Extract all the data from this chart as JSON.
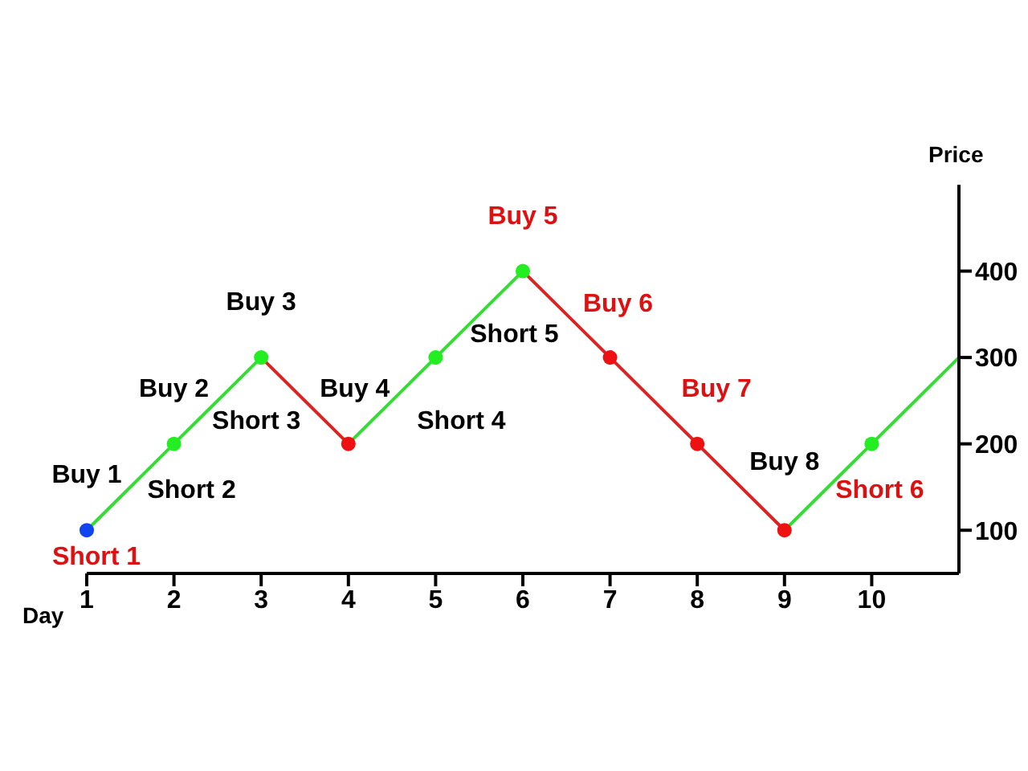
{
  "chart_data": {
    "type": "line",
    "xlabel": "Day",
    "ylabel": "Price",
    "xlim": [
      1,
      11
    ],
    "xticks": [
      1,
      2,
      3,
      4,
      5,
      6,
      7,
      8,
      9,
      10
    ],
    "ylim": [
      50,
      500
    ],
    "yticks": [
      100,
      200,
      300,
      400
    ],
    "grid": false,
    "legend": false,
    "marker": "none",
    "line_style": "solid",
    "series": [
      {
        "color": "#33dd33",
        "x": [
          1,
          2,
          3
        ],
        "values": [
          100,
          200,
          300
        ]
      },
      {
        "color": "#dd2222",
        "x": [
          3,
          4
        ],
        "values": [
          300,
          200
        ]
      },
      {
        "color": "#33dd33",
        "x": [
          4,
          5,
          6
        ],
        "values": [
          200,
          300,
          400
        ]
      },
      {
        "color": "#dd2222",
        "x": [
          6,
          7,
          8,
          9
        ],
        "values": [
          400,
          300,
          200,
          100
        ]
      },
      {
        "color": "#33dd33",
        "x": [
          9,
          10,
          11
        ],
        "values": [
          100,
          200,
          300
        ]
      },
      {
        "type": "scatter",
        "marker": "circle",
        "x": [
          1,
          2,
          3,
          4,
          5,
          6,
          7,
          8,
          9,
          10
        ],
        "values": [
          100,
          200,
          300,
          200,
          300,
          400,
          300,
          200,
          100,
          200
        ],
        "colors": [
          "#1144ee",
          "#22ee22",
          "#22ee22",
          "#ee1111",
          "#22ee22",
          "#22ee22",
          "#ee1111",
          "#ee1111",
          "#ee1111",
          "#22ee22"
        ]
      }
    ],
    "annotations": [
      {
        "text": "Buy 1",
        "x": 1,
        "y": 100
      },
      {
        "text": "Short 1",
        "x": 1,
        "y": 100
      },
      {
        "text": "Buy 2",
        "x": 2,
        "y": 200
      },
      {
        "text": "Short 2",
        "x": 2,
        "y": 200
      },
      {
        "text": "Buy 3",
        "x": 3,
        "y": 300
      },
      {
        "text": "Short 3",
        "x": 3,
        "y": 300
      },
      {
        "text": "Buy 4",
        "x": 4,
        "y": 200
      },
      {
        "text": "Short 4",
        "x": 5,
        "y": 300
      },
      {
        "text": "Short 5",
        "x": 5,
        "y": 300
      },
      {
        "text": "Buy 5",
        "x": 6,
        "y": 400
      },
      {
        "text": "Buy 6",
        "x": 7,
        "y": 300
      },
      {
        "text": "Buy 7",
        "x": 8,
        "y": 200
      },
      {
        "text": "Buy 8",
        "x": 9,
        "y": 100
      },
      {
        "text": "Short 6",
        "x": 10,
        "y": 200
      }
    ]
  }
}
